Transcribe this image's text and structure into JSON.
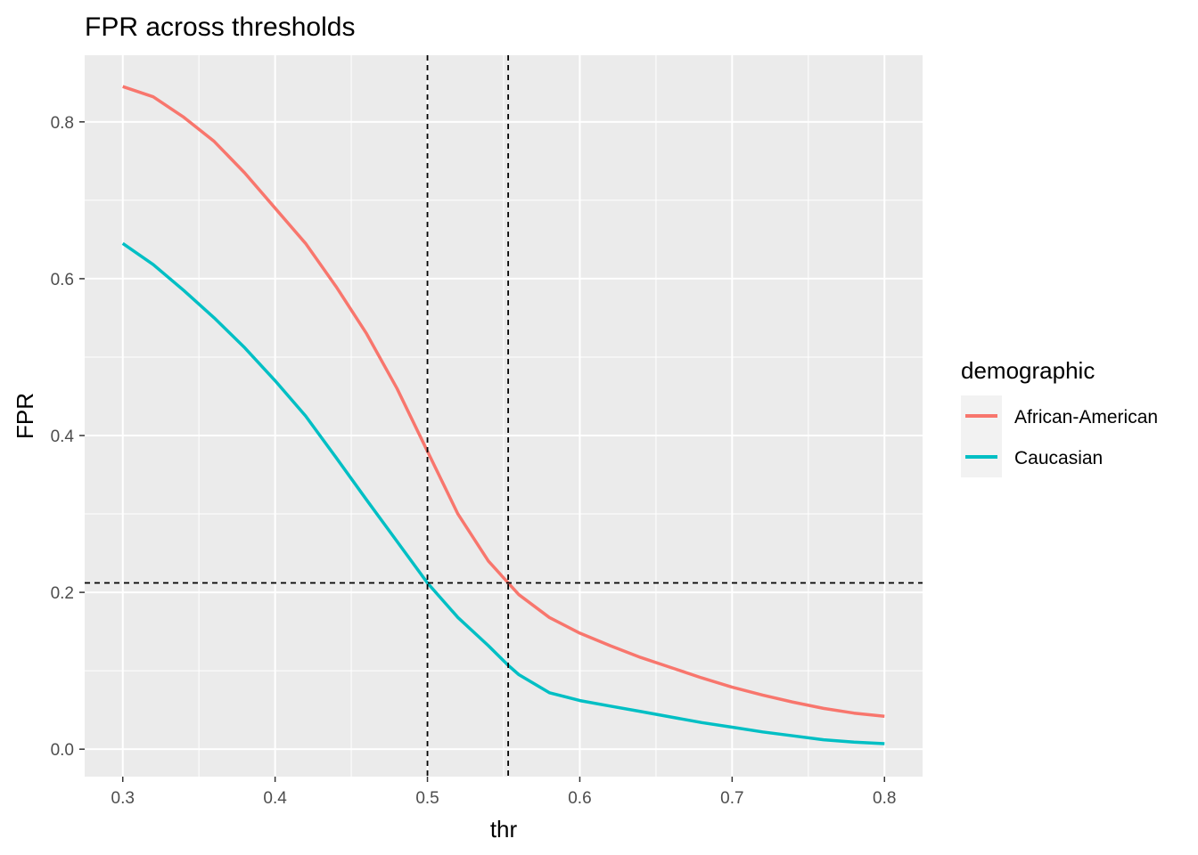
{
  "chart_data": {
    "type": "line",
    "title": "FPR across thresholds",
    "xlabel": "thr",
    "ylabel": "FPR",
    "xlim": [
      0.275,
      0.825
    ],
    "ylim": [
      -0.035,
      0.885
    ],
    "x_ticks": [
      0.3,
      0.4,
      0.5,
      0.6,
      0.7,
      0.8
    ],
    "x_tick_labels": [
      "0.3",
      "0.4",
      "0.5",
      "0.6",
      "0.7",
      "0.8"
    ],
    "y_ticks": [
      0.0,
      0.2,
      0.4,
      0.6,
      0.8
    ],
    "y_tick_labels": [
      "0.0",
      "0.2",
      "0.4",
      "0.6",
      "0.8"
    ],
    "grid": true,
    "legend": {
      "title": "demographic",
      "position": "right"
    },
    "series": [
      {
        "name": "African-American",
        "color": "#F8766D",
        "x": [
          0.3,
          0.32,
          0.34,
          0.36,
          0.38,
          0.4,
          0.42,
          0.44,
          0.46,
          0.48,
          0.5,
          0.52,
          0.54,
          0.553,
          0.56,
          0.58,
          0.6,
          0.62,
          0.64,
          0.66,
          0.68,
          0.7,
          0.72,
          0.74,
          0.76,
          0.78,
          0.8
        ],
        "values": [
          0.845,
          0.832,
          0.806,
          0.775,
          0.735,
          0.69,
          0.645,
          0.59,
          0.53,
          0.46,
          0.38,
          0.3,
          0.24,
          0.212,
          0.197,
          0.168,
          0.148,
          0.132,
          0.117,
          0.104,
          0.091,
          0.079,
          0.069,
          0.06,
          0.052,
          0.046,
          0.042
        ]
      },
      {
        "name": "Caucasian",
        "color": "#00BFC4",
        "x": [
          0.3,
          0.32,
          0.34,
          0.36,
          0.38,
          0.4,
          0.42,
          0.44,
          0.46,
          0.48,
          0.5,
          0.52,
          0.54,
          0.553,
          0.56,
          0.58,
          0.6,
          0.62,
          0.64,
          0.66,
          0.68,
          0.7,
          0.72,
          0.74,
          0.76,
          0.78,
          0.8
        ],
        "values": [
          0.645,
          0.618,
          0.585,
          0.55,
          0.512,
          0.47,
          0.425,
          0.372,
          0.318,
          0.265,
          0.212,
          0.168,
          0.132,
          0.107,
          0.095,
          0.072,
          0.062,
          0.055,
          0.048,
          0.041,
          0.034,
          0.028,
          0.022,
          0.017,
          0.012,
          0.009,
          0.007
        ]
      }
    ],
    "reference_lines": {
      "vertical": [
        0.5,
        0.553
      ],
      "horizontal": [
        0.212
      ],
      "style": "dashed",
      "color": "#000000"
    }
  }
}
